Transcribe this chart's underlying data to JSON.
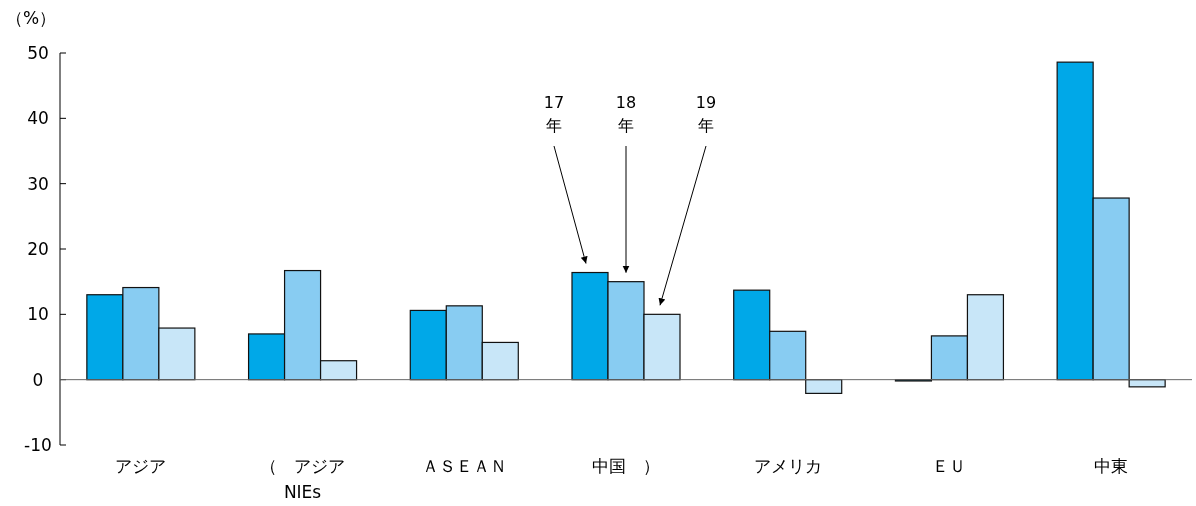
{
  "chart_data": {
    "type": "bar",
    "ylabel": "（%）",
    "categories": [
      "アジア",
      "（　アジア\nNIEs",
      "ＡＳＥＡＮ",
      "中国　）",
      "アメリカ",
      "ＥＵ",
      "中東"
    ],
    "series": [
      {
        "name": "17\n年",
        "color": "#00a8e8",
        "values": [
          13.0,
          7.0,
          10.6,
          16.4,
          13.7,
          -0.2,
          48.6
        ]
      },
      {
        "name": "18\n年",
        "color": "#88ccf2",
        "values": [
          14.1,
          16.7,
          11.3,
          15.0,
          7.4,
          6.7,
          27.8
        ]
      },
      {
        "name": "19\n年",
        "color": "#c8e6f8",
        "values": [
          7.9,
          2.9,
          5.7,
          10.0,
          -2.1,
          13.0,
          -1.1
        ]
      }
    ],
    "ylim": [
      -10,
      50
    ],
    "yticks": [
      -10,
      0,
      10,
      20,
      30,
      40,
      50
    ],
    "legend": false
  }
}
